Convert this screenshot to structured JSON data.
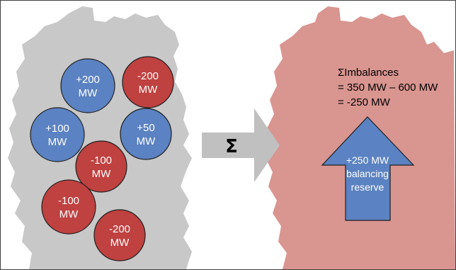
{
  "diagram": {
    "regions": [
      {
        "value": "+200",
        "unit": "MW",
        "sign": "positive"
      },
      {
        "value": "-200",
        "unit": "MW",
        "sign": "negative"
      },
      {
        "value": "+100",
        "unit": "MW",
        "sign": "positive"
      },
      {
        "value": "+50",
        "unit": "MW",
        "sign": "positive"
      },
      {
        "value": "-100",
        "unit": "MW",
        "sign": "negative"
      },
      {
        "value": "-100",
        "unit": "MW",
        "sign": "negative"
      },
      {
        "value": "-200",
        "unit": "MW",
        "sign": "negative"
      }
    ],
    "operator_symbol": "Σ",
    "summary": {
      "line1": "ΣImbalances",
      "line2": "= 350 MW – 600 MW",
      "line3": "= -250 MW"
    },
    "reserve": {
      "line1": "+250 MW",
      "line2": "balancing",
      "line3": "reserve"
    },
    "colors": {
      "positive": "#5b82c2",
      "negative": "#bf4140",
      "map_left": "#c8c8c8",
      "map_right": "#d99590",
      "big_arrow": "#c0c0c0",
      "reserve_arrow": "#5b82c2"
    }
  }
}
